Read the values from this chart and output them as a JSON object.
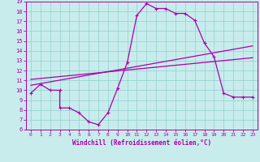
{
  "bg_color": "#c8ecec",
  "line_color": "#aa00aa",
  "grid_color": "#9ad4d4",
  "xlabel": "Windchill (Refroidissement éolien,°C)",
  "xlim": [
    -0.5,
    23.5
  ],
  "ylim": [
    6,
    19
  ],
  "xticks": [
    0,
    1,
    2,
    3,
    4,
    5,
    6,
    7,
    8,
    9,
    10,
    11,
    12,
    13,
    14,
    15,
    16,
    17,
    18,
    19,
    20,
    21,
    22,
    23
  ],
  "yticks": [
    6,
    7,
    8,
    9,
    10,
    11,
    12,
    13,
    14,
    15,
    16,
    17,
    18,
    19
  ],
  "curve1_x": [
    0,
    1,
    2,
    3,
    3,
    4,
    5,
    6,
    7,
    8,
    9,
    10,
    11,
    12,
    13,
    14,
    15,
    16,
    17,
    18,
    19,
    20,
    21,
    22,
    23
  ],
  "curve1_y": [
    9.7,
    10.6,
    10.0,
    10.0,
    8.2,
    8.2,
    7.7,
    6.8,
    6.5,
    7.7,
    10.2,
    12.8,
    17.6,
    18.8,
    18.3,
    18.3,
    17.8,
    17.8,
    17.1,
    14.8,
    13.4,
    9.7,
    9.3,
    9.3,
    9.3
  ],
  "line2_x": [
    0,
    23
  ],
  "line2_y": [
    10.5,
    14.5
  ],
  "line3_x": [
    0,
    23
  ],
  "line3_y": [
    11.1,
    13.3
  ],
  "marker_size": 3.5,
  "linewidth": 0.9
}
